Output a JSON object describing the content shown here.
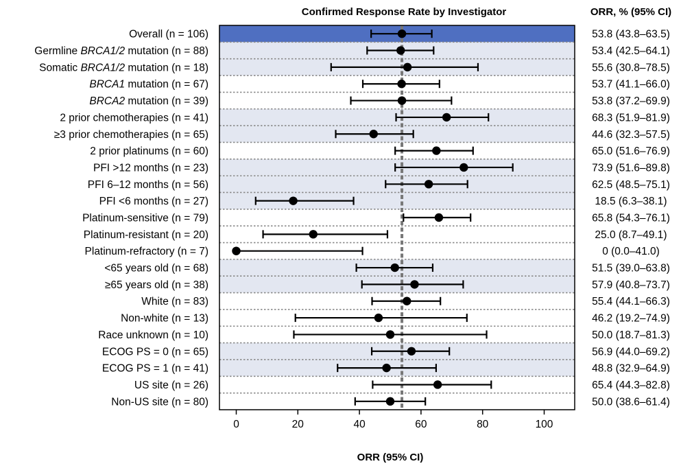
{
  "chart_data": {
    "type": "forest",
    "title": "Confirmed Response Rate by Investigator",
    "right_column_header": "ORR, % (95% CI)",
    "xlabel": "ORR (95% CI)",
    "xlim": [
      0,
      100
    ],
    "xticks": [
      0,
      20,
      40,
      60,
      80,
      100
    ],
    "reference_line": 53.8,
    "colors": {
      "highlight": "#4f6fc1",
      "band": "#e3e7f1",
      "marker": "#000000",
      "reference": "#777777"
    },
    "rows": [
      {
        "label": "Overall (n = 106)",
        "label_parts": [
          {
            "t": "Overall (n = 106)"
          }
        ],
        "orr": 53.8,
        "lo": 43.8,
        "hi": 63.5,
        "text": "53.8 (43.8–63.5)",
        "shade": "highlight"
      },
      {
        "label": "Germline BRCA1/2 mutation (n = 88)",
        "label_parts": [
          {
            "t": "Germline "
          },
          {
            "t": "BRCA1/2",
            "i": true
          },
          {
            "t": " mutation (n = 88)"
          }
        ],
        "orr": 53.4,
        "lo": 42.5,
        "hi": 64.1,
        "text": "53.4 (42.5–64.1)",
        "shade": "band"
      },
      {
        "label": "Somatic BRCA1/2 mutation (n = 18)",
        "label_parts": [
          {
            "t": "Somatic "
          },
          {
            "t": "BRCA1/2",
            "i": true
          },
          {
            "t": " mutation (n = 18)"
          }
        ],
        "orr": 55.6,
        "lo": 30.8,
        "hi": 78.5,
        "text": "55.6 (30.8–78.5)",
        "shade": "band"
      },
      {
        "label": "BRCA1 mutation (n = 67)",
        "label_parts": [
          {
            "t": "BRCA1",
            "i": true
          },
          {
            "t": " mutation (n = 67)"
          }
        ],
        "orr": 53.7,
        "lo": 41.1,
        "hi": 66.0,
        "text": "53.7 (41.1–66.0)",
        "shade": "none"
      },
      {
        "label": "BRCA2 mutation (n = 39)",
        "label_parts": [
          {
            "t": "BRCA2",
            "i": true
          },
          {
            "t": " mutation (n = 39)"
          }
        ],
        "orr": 53.8,
        "lo": 37.2,
        "hi": 69.9,
        "text": "53.8 (37.2–69.9)",
        "shade": "none"
      },
      {
        "label": "2 prior chemotherapies (n = 41)",
        "label_parts": [
          {
            "t": "2 prior chemotherapies (n = 41)"
          }
        ],
        "orr": 68.3,
        "lo": 51.9,
        "hi": 81.9,
        "text": "68.3 (51.9–81.9)",
        "shade": "band"
      },
      {
        "label": "≥3 prior chemotherapies (n = 65)",
        "label_parts": [
          {
            "t": "≥3 prior chemotherapies (n = 65)"
          }
        ],
        "orr": 44.6,
        "lo": 32.3,
        "hi": 57.5,
        "text": "44.6 (32.3–57.5)",
        "shade": "band"
      },
      {
        "label": "2 prior platinums (n = 60)",
        "label_parts": [
          {
            "t": "2 prior platinums (n = 60)"
          }
        ],
        "orr": 65.0,
        "lo": 51.6,
        "hi": 76.9,
        "text": "65.0 (51.6–76.9)",
        "shade": "none"
      },
      {
        "label": "PFI >12 months (n = 23)",
        "label_parts": [
          {
            "t": "PFI >12 months (n = 23)"
          }
        ],
        "orr": 73.9,
        "lo": 51.6,
        "hi": 89.8,
        "text": "73.9 (51.6–89.8)",
        "shade": "band"
      },
      {
        "label": "PFI 6–12 months (n = 56)",
        "label_parts": [
          {
            "t": "PFI 6–12 months (n = 56)"
          }
        ],
        "orr": 62.5,
        "lo": 48.5,
        "hi": 75.1,
        "text": "62.5 (48.5–75.1)",
        "shade": "band"
      },
      {
        "label": "PFI <6 months (n = 27)",
        "label_parts": [
          {
            "t": "PFI <6 months (n = 27)"
          }
        ],
        "orr": 18.5,
        "lo": 6.3,
        "hi": 38.1,
        "text": "18.5 (6.3–38.1)",
        "shade": "band"
      },
      {
        "label": "Platinum-sensitive (n = 79)",
        "label_parts": [
          {
            "t": "Platinum-sensitive (n = 79)"
          }
        ],
        "orr": 65.8,
        "lo": 54.3,
        "hi": 76.1,
        "text": "65.8 (54.3–76.1)",
        "shade": "none"
      },
      {
        "label": "Platinum-resistant (n = 20)",
        "label_parts": [
          {
            "t": "Platinum-resistant (n = 20)"
          }
        ],
        "orr": 25.0,
        "lo": 8.7,
        "hi": 49.1,
        "text": "25.0 (8.7–49.1)",
        "shade": "none"
      },
      {
        "label": "Platinum-refractory (n = 7)",
        "label_parts": [
          {
            "t": "Platinum-refractory (n = 7)"
          }
        ],
        "orr": 0,
        "lo": 0.0,
        "hi": 41.0,
        "text": "0 (0.0–41.0)",
        "shade": "none"
      },
      {
        "label": "<65 years old (n = 68)",
        "label_parts": [
          {
            "t": "<65 years old (n = 68)"
          }
        ],
        "orr": 51.5,
        "lo": 39.0,
        "hi": 63.8,
        "text": "51.5 (39.0–63.8)",
        "shade": "band"
      },
      {
        "label": "≥65 years old (n = 38)",
        "label_parts": [
          {
            "t": "≥65 years old (n = 38)"
          }
        ],
        "orr": 57.9,
        "lo": 40.8,
        "hi": 73.7,
        "text": "57.9 (40.8–73.7)",
        "shade": "band"
      },
      {
        "label": "White (n = 83)",
        "label_parts": [
          {
            "t": "White (n = 83)"
          }
        ],
        "orr": 55.4,
        "lo": 44.1,
        "hi": 66.3,
        "text": "55.4 (44.1–66.3)",
        "shade": "none"
      },
      {
        "label": "Non-white (n = 13)",
        "label_parts": [
          {
            "t": "Non-white (n = 13)"
          }
        ],
        "orr": 46.2,
        "lo": 19.2,
        "hi": 74.9,
        "text": "46.2 (19.2–74.9)",
        "shade": "none"
      },
      {
        "label": "Race unknown (n = 10)",
        "label_parts": [
          {
            "t": "Race unknown (n = 10)"
          }
        ],
        "orr": 50.0,
        "lo": 18.7,
        "hi": 81.3,
        "text": "50.0 (18.7–81.3)",
        "shade": "none"
      },
      {
        "label": "ECOG PS = 0 (n = 65)",
        "label_parts": [
          {
            "t": "ECOG PS = 0 (n = 65)"
          }
        ],
        "orr": 56.9,
        "lo": 44.0,
        "hi": 69.2,
        "text": "56.9 (44.0–69.2)",
        "shade": "band"
      },
      {
        "label": "ECOG PS = 1 (n = 41)",
        "label_parts": [
          {
            "t": "ECOG PS = 1 (n = 41)"
          }
        ],
        "orr": 48.8,
        "lo": 32.9,
        "hi": 64.9,
        "text": "48.8 (32.9–64.9)",
        "shade": "band"
      },
      {
        "label": "US site (n = 26)",
        "label_parts": [
          {
            "t": "US site (n = 26)"
          }
        ],
        "orr": 65.4,
        "lo": 44.3,
        "hi": 82.8,
        "text": "65.4 (44.3–82.8)",
        "shade": "none"
      },
      {
        "label": "Non-US site (n = 80)",
        "label_parts": [
          {
            "t": "Non-US site (n = 80)"
          }
        ],
        "orr": 50.0,
        "lo": 38.6,
        "hi": 61.4,
        "text": "50.0 (38.6–61.4)",
        "shade": "none"
      }
    ]
  }
}
